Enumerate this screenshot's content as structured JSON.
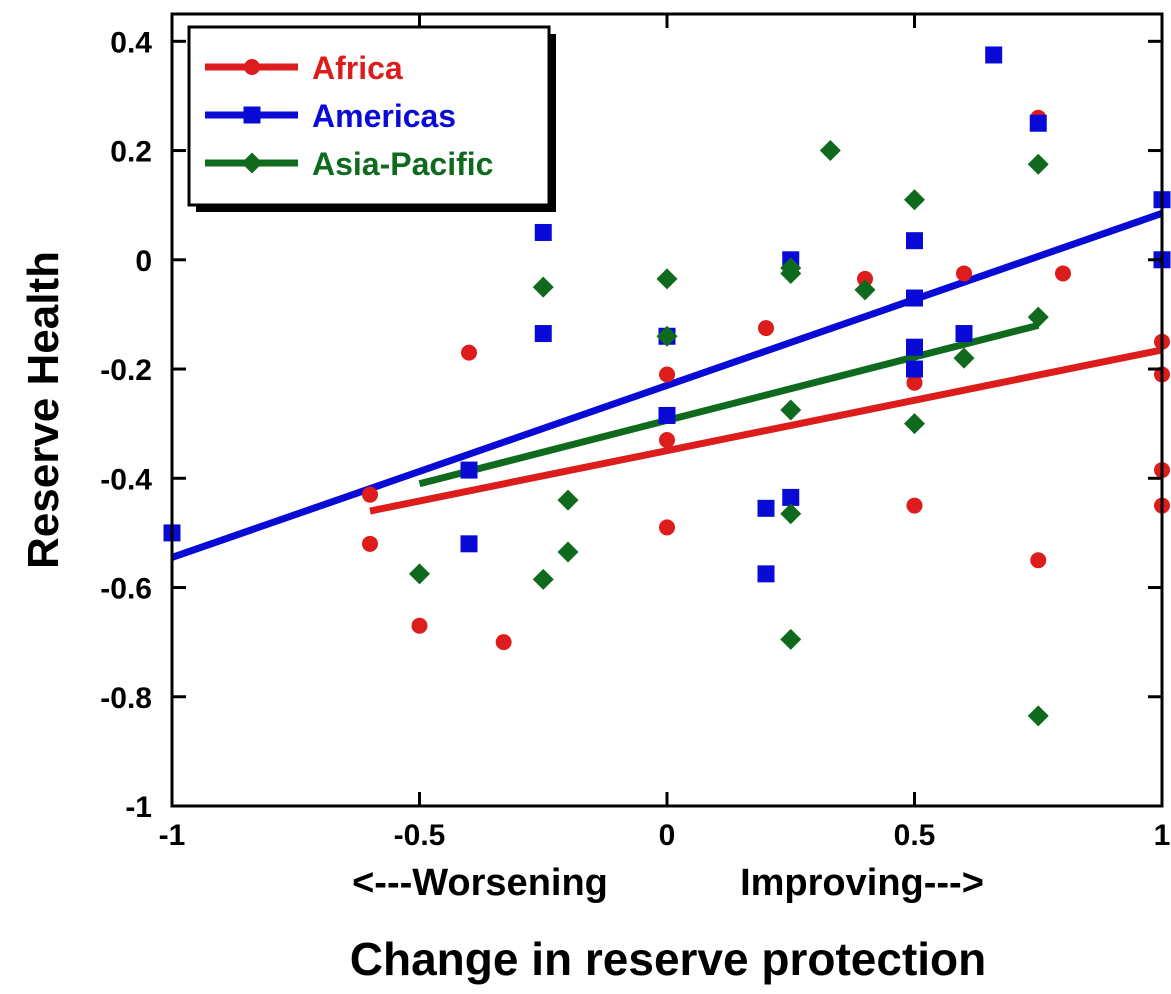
{
  "chart_data": {
    "type": "scatter",
    "title": "",
    "xlabel": "Change in reserve protection",
    "xlabel_sub_left": "<---Worsening",
    "xlabel_sub_right": "Improving--->",
    "ylabel": "Reserve Health",
    "xlim": [
      -1,
      1
    ],
    "ylim": [
      -1,
      0.45
    ],
    "x_ticks": [
      -1,
      -0.5,
      0,
      0.5,
      1
    ],
    "x_tick_labels": [
      "-1",
      "-0.5",
      "0",
      "0.5",
      "1"
    ],
    "y_ticks": [
      0.4,
      0.2,
      0,
      -0.2,
      -0.4,
      -0.6,
      -0.8,
      -1
    ],
    "y_tick_labels": [
      "0.4",
      "0.2",
      "0",
      "-0.2",
      "-0.4",
      "-0.6",
      "-0.8",
      "-1"
    ],
    "legend_position": "top-left",
    "series": [
      {
        "name": "Africa",
        "color": "#dd1c1c",
        "marker": "circle",
        "points": [
          [
            -0.6,
            -0.43
          ],
          [
            -0.6,
            -0.52
          ],
          [
            -0.5,
            -0.67
          ],
          [
            -0.4,
            -0.17
          ],
          [
            -0.33,
            -0.7
          ],
          [
            0,
            -0.21
          ],
          [
            0,
            -0.33
          ],
          [
            0,
            -0.49
          ],
          [
            0.2,
            -0.125
          ],
          [
            0.4,
            -0.035
          ],
          [
            0.5,
            -0.225
          ],
          [
            0.5,
            -0.45
          ],
          [
            0.6,
            -0.025
          ],
          [
            0.75,
            0.26
          ],
          [
            0.75,
            -0.55
          ],
          [
            0.8,
            -0.025
          ],
          [
            1,
            -0.15
          ],
          [
            1,
            -0.21
          ],
          [
            1,
            -0.385
          ],
          [
            1,
            -0.45
          ]
        ],
        "fit": [
          [
            -0.6,
            -0.46
          ],
          [
            1,
            -0.165
          ]
        ]
      },
      {
        "name": "Americas",
        "color": "#0a0ad6",
        "marker": "square",
        "points": [
          [
            -1,
            -0.5
          ],
          [
            -0.4,
            -0.385
          ],
          [
            -0.4,
            -0.52
          ],
          [
            -0.25,
            0.05
          ],
          [
            -0.25,
            -0.135
          ],
          [
            0,
            -0.14
          ],
          [
            0,
            -0.285
          ],
          [
            0.2,
            -0.455
          ],
          [
            0.2,
            -0.575
          ],
          [
            0.25,
            0
          ],
          [
            0.25,
            -0.435
          ],
          [
            0.5,
            0.035
          ],
          [
            0.5,
            -0.07
          ],
          [
            0.5,
            -0.16
          ],
          [
            0.5,
            -0.2
          ],
          [
            0.6,
            -0.135
          ],
          [
            0.66,
            0.375
          ],
          [
            0.75,
            0.25
          ],
          [
            1,
            0.11
          ],
          [
            1,
            0
          ]
        ],
        "fit": [
          [
            -1,
            -0.545
          ],
          [
            1,
            0.085
          ]
        ]
      },
      {
        "name": "Asia-Pacific",
        "color": "#0f6a1e",
        "marker": "diamond",
        "points": [
          [
            -0.5,
            -0.575
          ],
          [
            -0.25,
            -0.05
          ],
          [
            -0.25,
            -0.585
          ],
          [
            -0.2,
            -0.44
          ],
          [
            -0.2,
            -0.535
          ],
          [
            0,
            -0.035
          ],
          [
            0,
            -0.14
          ],
          [
            0.25,
            -0.015
          ],
          [
            0.25,
            -0.025
          ],
          [
            0.25,
            -0.275
          ],
          [
            0.25,
            -0.465
          ],
          [
            0.25,
            -0.695
          ],
          [
            0.33,
            0.2
          ],
          [
            0.4,
            -0.055
          ],
          [
            0.5,
            0.11
          ],
          [
            0.5,
            -0.3
          ],
          [
            0.6,
            -0.18
          ],
          [
            0.75,
            0.175
          ],
          [
            0.75,
            -0.105
          ],
          [
            0.75,
            -0.835
          ]
        ],
        "fit": [
          [
            -0.5,
            -0.41
          ],
          [
            0.75,
            -0.12
          ]
        ]
      }
    ]
  }
}
